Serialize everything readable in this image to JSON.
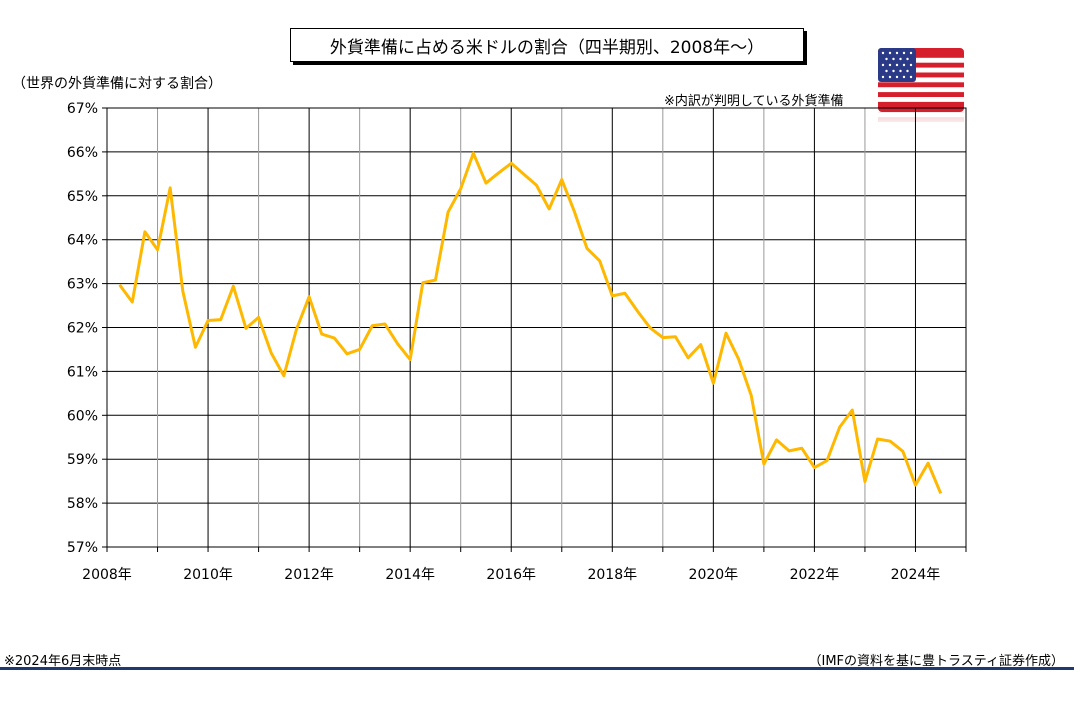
{
  "title": "外貨準備に占める米ドルの割合（四半期別、2008年～）",
  "ylabel_note": "（世界の外貨準備に対する割合）",
  "note": "※内訳が判明している外貨準備",
  "footer_left": "※2024年6月末時点",
  "footer_right": "（IMFの資料を基に豊トラスティ証券作成）",
  "flag_icon": "us-flag-icon",
  "colors": {
    "line": "#FFB800",
    "grid": "#000000",
    "minor_grid": "#999999",
    "footer_line": "#1f3a6e"
  },
  "chart_data": {
    "type": "line",
    "ylim": [
      57,
      67
    ],
    "yticks": [
      57,
      58,
      59,
      60,
      61,
      62,
      63,
      64,
      65,
      66,
      67
    ],
    "ytick_labels": [
      "57%",
      "58%",
      "59%",
      "60%",
      "61%",
      "62%",
      "63%",
      "64%",
      "65%",
      "66%",
      "67%"
    ],
    "xlim": [
      2008,
      2025
    ],
    "xtick_labels": [
      "2008年",
      "2010年",
      "2012年",
      "2014年",
      "2016年",
      "2018年",
      "2020年",
      "2022年",
      "2024年"
    ],
    "xtick_values": [
      2008,
      2010,
      2012,
      2014,
      2016,
      2018,
      2020,
      2022,
      2024
    ],
    "grid": true,
    "series": [
      {
        "values": [
          62.97,
          62.58,
          64.18,
          63.77,
          65.18,
          62.83,
          61.55,
          62.16,
          62.18,
          62.94,
          61.98,
          62.23,
          61.42,
          60.9,
          61.96,
          62.7,
          61.85,
          61.76,
          61.4,
          61.5,
          62.04,
          62.08,
          61.63,
          61.27,
          63.02,
          63.08,
          64.63,
          65.16,
          65.97,
          65.29,
          65.52,
          65.74,
          65.49,
          65.24,
          64.7,
          65.37,
          64.64,
          63.8,
          63.52,
          62.72,
          62.78,
          62.37,
          61.99,
          61.77,
          61.79,
          61.31,
          61.61,
          60.73,
          61.87,
          61.28,
          60.45,
          58.89,
          59.44,
          59.19,
          59.25,
          58.81,
          58.97,
          59.73,
          60.12,
          58.49,
          59.46,
          59.41,
          59.18,
          58.41,
          58.91,
          58.22
        ]
      }
    ]
  }
}
